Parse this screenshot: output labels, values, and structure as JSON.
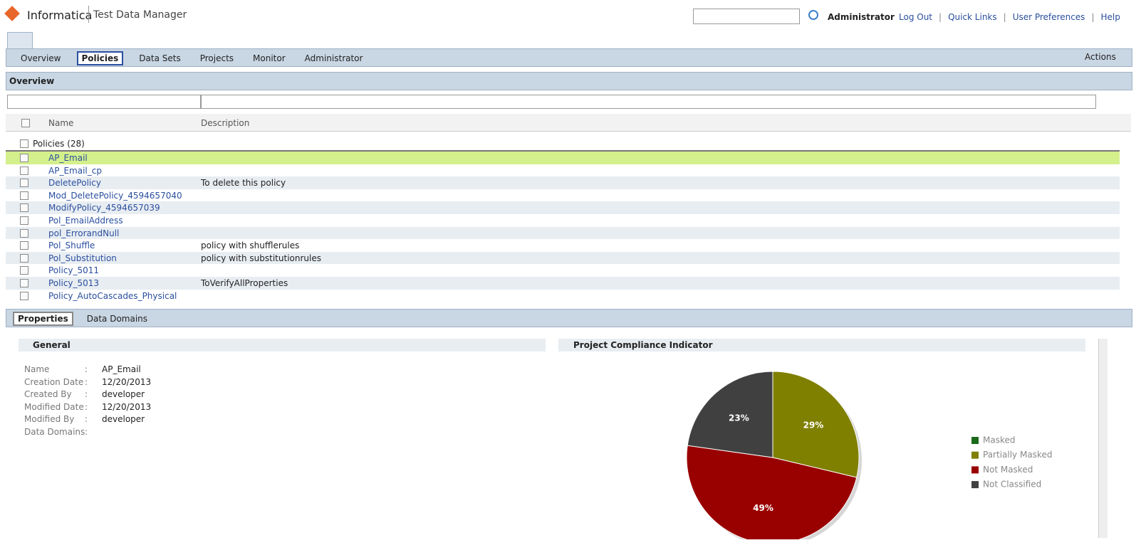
{
  "header": {
    "brand": "Informatica",
    "product": "Test Data Manager",
    "user": "Administrator",
    "links": [
      "Log Out",
      "Quick Links",
      "User Preferences",
      "Help"
    ],
    "separator": "|"
  },
  "tabs": {
    "items": [
      "Overview",
      "Policies",
      "Data Sets",
      "Projects",
      "Monitor",
      "Administrator"
    ],
    "active": 1,
    "actions": "Actions"
  },
  "overview": {
    "title": "Overview",
    "columns": [
      "Name",
      "Description"
    ],
    "group": "Policies (28)",
    "rows": [
      {
        "name": "AP_Email"
      },
      {
        "name": "AP_Email_cp"
      },
      {
        "name": "DeletePolicy",
        "description": "To delete this policy"
      },
      {
        "name": "Mod_DeletePolicy_4594657040"
      },
      {
        "name": "ModifyPolicy_4594657039"
      },
      {
        "name": "Pol_EmailAddress"
      },
      {
        "name": "pol_ErrorandNull"
      },
      {
        "name": "Pol_Shuffle",
        "description": "policy with shufflerules"
      },
      {
        "name": "Pol_Substitution",
        "description": "policy with substitutionrules"
      },
      {
        "name": "Policy_5011"
      },
      {
        "name": "Policy_5013",
        "description": "ToVerifyAllProperties"
      },
      {
        "name": "Policy_AutoCascades_Physical"
      }
    ]
  },
  "details": {
    "tabs": [
      "Properties",
      "Data Domains"
    ],
    "general": {
      "title": "General",
      "separator": ":",
      "fields": [
        {
          "label": "Name",
          "value": "AP_Email"
        },
        {
          "label": "Creation Date",
          "value": "12/20/2013"
        },
        {
          "label": "Created By",
          "value": "developer"
        },
        {
          "label": "Modified Date",
          "value": "12/20/2013"
        },
        {
          "label": "Modified By",
          "value": "developer"
        },
        {
          "label": "Data Domains"
        }
      ]
    }
  },
  "chart_data": {
    "type": "pie",
    "title": "Project Compliance Indicator",
    "categories": [
      "Masked",
      "Partially Masked",
      "Not Masked",
      "Not Classified"
    ],
    "values": [
      0,
      29,
      49,
      23
    ],
    "value_labels": [
      null,
      "29%",
      "49%",
      "23%"
    ],
    "colors": [
      "#1b6a1b",
      "#7f7f00",
      "#990000",
      "#404040"
    ],
    "legend": "right"
  }
}
